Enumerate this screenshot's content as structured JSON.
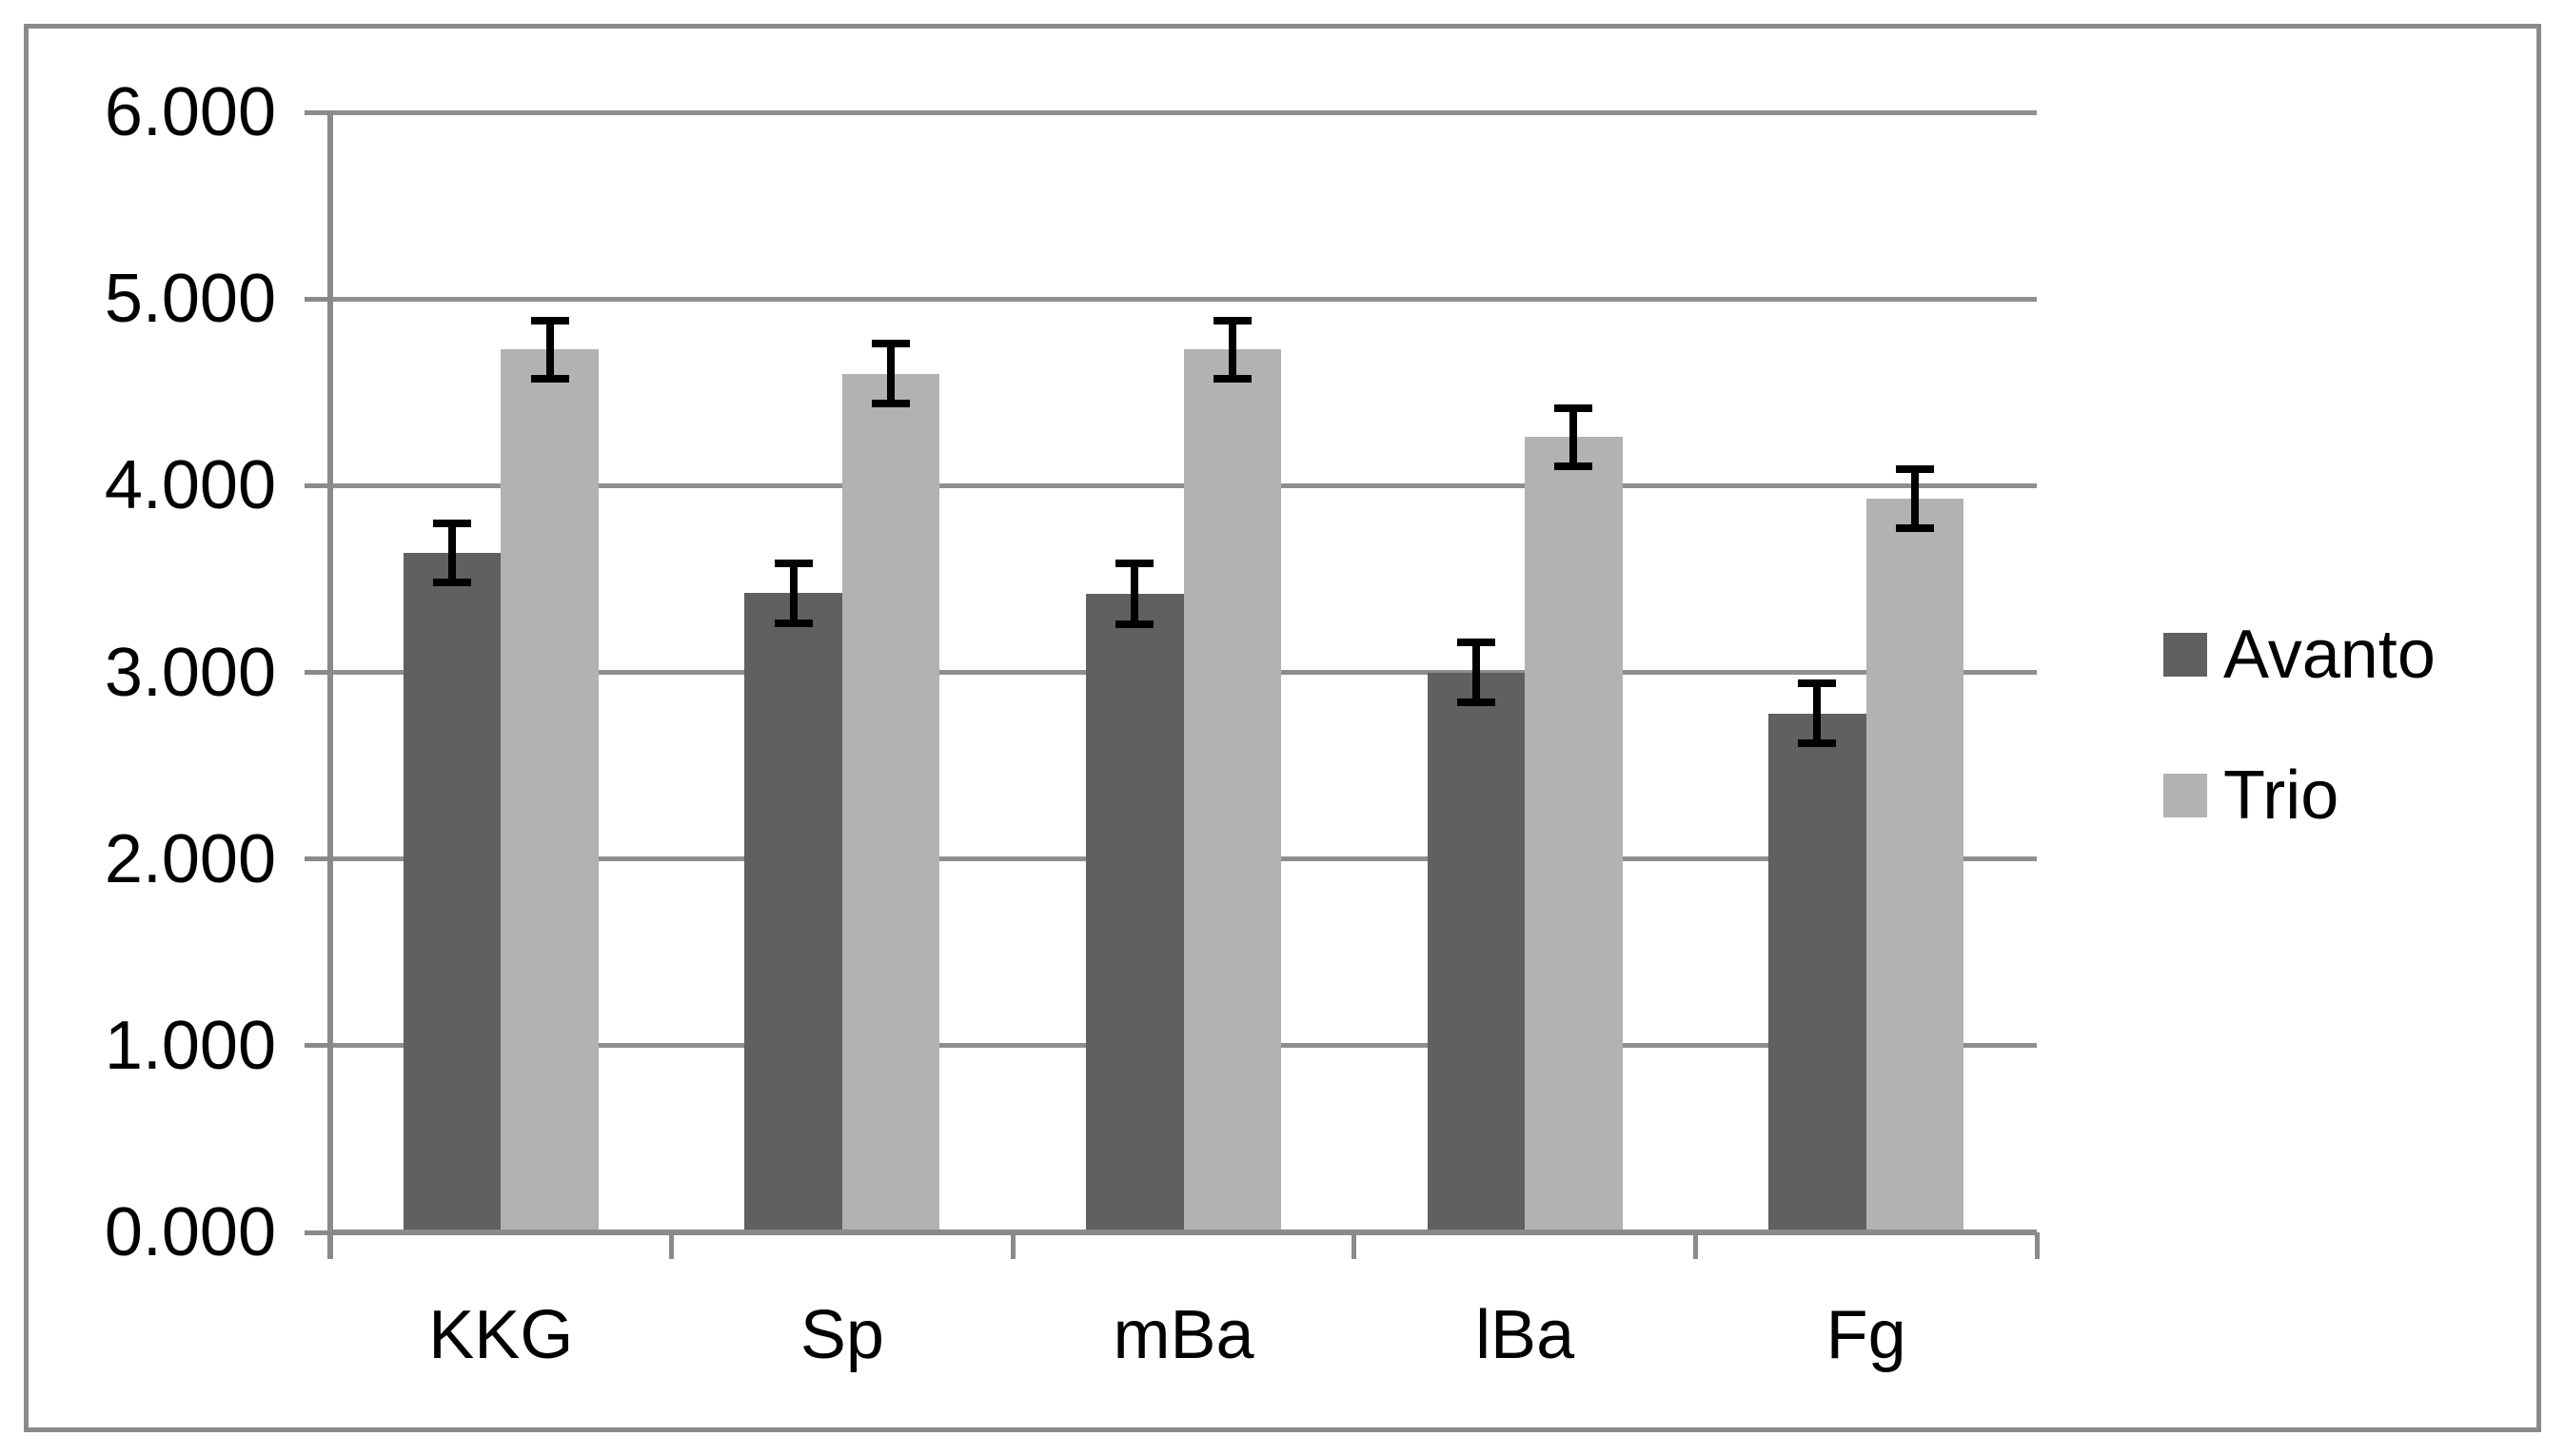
{
  "chart_data": {
    "type": "bar",
    "title": "",
    "categories": [
      "KKG",
      "Sp",
      "mBa",
      "lBa",
      "Fg"
    ],
    "series": [
      {
        "name": "Avanto",
        "color": "#606060",
        "values": [
          3640,
          3425,
          3420,
          3000,
          2780
        ],
        "errors": [
          160,
          160,
          165,
          160,
          160
        ]
      },
      {
        "name": "Trio",
        "color": "#b2b2b2",
        "values": [
          4730,
          4600,
          4730,
          4260,
          3930
        ],
        "errors": [
          155,
          160,
          155,
          155,
          160
        ]
      }
    ],
    "y_axis": {
      "min": 0,
      "max": 6000,
      "step": 1000,
      "tick_labels": [
        "0.000",
        "1.000",
        "2.000",
        "3.000",
        "4.000",
        "5.000",
        "6.000"
      ]
    },
    "x_axis": {
      "tick_labels": [
        "KKG",
        "Sp",
        "mBa",
        "lBa",
        "Fg"
      ]
    },
    "grid": true,
    "error_bars": true,
    "legend_position": "right",
    "legend": {
      "items": [
        "Avanto",
        "Trio"
      ]
    },
    "colors": {
      "series_avanto": "#606060",
      "series_trio": "#b2b2b2",
      "gridline": "#8e8e8e",
      "axis": "#8a8a8a",
      "chart_border": "#8a8a8a",
      "text": "#000000",
      "background": "#ffffff",
      "error_bar": "#000000"
    }
  }
}
